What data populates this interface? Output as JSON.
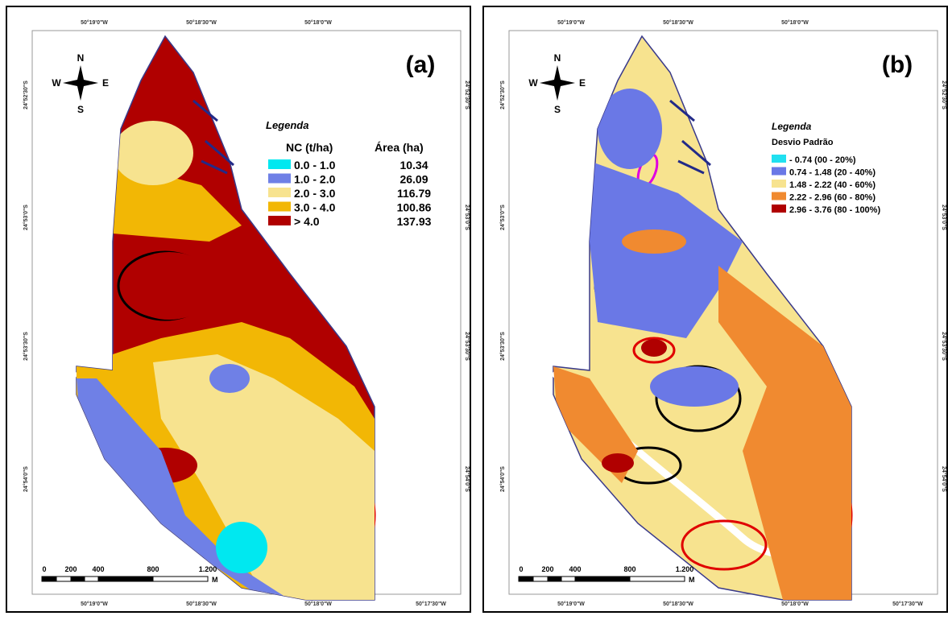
{
  "panels": [
    {
      "label": "(a)",
      "top_coords": [
        "50°19'0\"W",
        "50°18'30\"W",
        "50°18'0\"W"
      ],
      "bottom_coords": [
        "50°19'0\"W",
        "50°18'30\"W",
        "50°18'0\"W",
        "50°17'30\"W"
      ],
      "left_coords": [
        "24°52'30\"S",
        "24°53'0\"S",
        "24°53'30\"S",
        "24°54'0\"S"
      ],
      "right_coords": [
        "24°52'30\"S",
        "24°53'0\"S",
        "24°53'30\"S",
        "24°54'0\"S"
      ],
      "compass": {
        "n": "N",
        "s": "S",
        "w": "W",
        "e": "E"
      },
      "scale": {
        "ticks": [
          "0",
          "200",
          "400",
          "800",
          "1.200"
        ],
        "unit": "M"
      },
      "legend": {
        "title": "Legenda",
        "headers": [
          "NC (t/ha)",
          "Área (ha)"
        ],
        "rows": [
          {
            "range": "0.0 - 1.0",
            "area": "10.34",
            "color": "#00e8f0"
          },
          {
            "range": "1.0 - 2.0",
            "area": "26.09",
            "color": "#6f80e6"
          },
          {
            "range": "2.0 - 3.0",
            "area": "116.79",
            "color": "#f7e38f"
          },
          {
            "range": "3.0 - 4.0",
            "area": "100.86",
            "color": "#f2b705"
          },
          {
            "range": "> 4.0",
            "area": "137.93",
            "color": "#b00000"
          }
        ]
      }
    },
    {
      "label": "(b)",
      "top_coords": [
        "50°19'0\"W",
        "50°18'30\"W",
        "50°18'0\"W"
      ],
      "bottom_coords": [
        "50°19'0\"W",
        "50°18'30\"W",
        "50°18'0\"W",
        "50°17'30\"W"
      ],
      "left_coords": [
        "24°52'30\"S",
        "24°53'0\"S",
        "24°53'30\"S",
        "24°54'0\"S"
      ],
      "right_coords": [
        "24°52'30\"S",
        "24°53'0\"S",
        "24°53'30\"S",
        "24°54'0\"S"
      ],
      "compass": {
        "n": "N",
        "s": "S",
        "w": "W",
        "e": "E"
      },
      "scale": {
        "ticks": [
          "0",
          "200",
          "400",
          "800",
          "1.200"
        ],
        "unit": "M"
      },
      "legend": {
        "title": "Legenda",
        "subtitle": "Desvio Padrão",
        "rows": [
          {
            "range": "- 0.74 (00 - 20%)",
            "color": "#20e0f0"
          },
          {
            "range": "0.74 - 1.48 (20 - 40%)",
            "color": "#6a78e6"
          },
          {
            "range": "1.48 - 2.22 (40 - 60%)",
            "color": "#f7e38f"
          },
          {
            "range": "2.22 - 2.96 (60 - 80%)",
            "color": "#f08a30"
          },
          {
            "range": "2.96 - 3.76 (80 - 100%)",
            "color": "#b00000"
          }
        ]
      }
    }
  ]
}
